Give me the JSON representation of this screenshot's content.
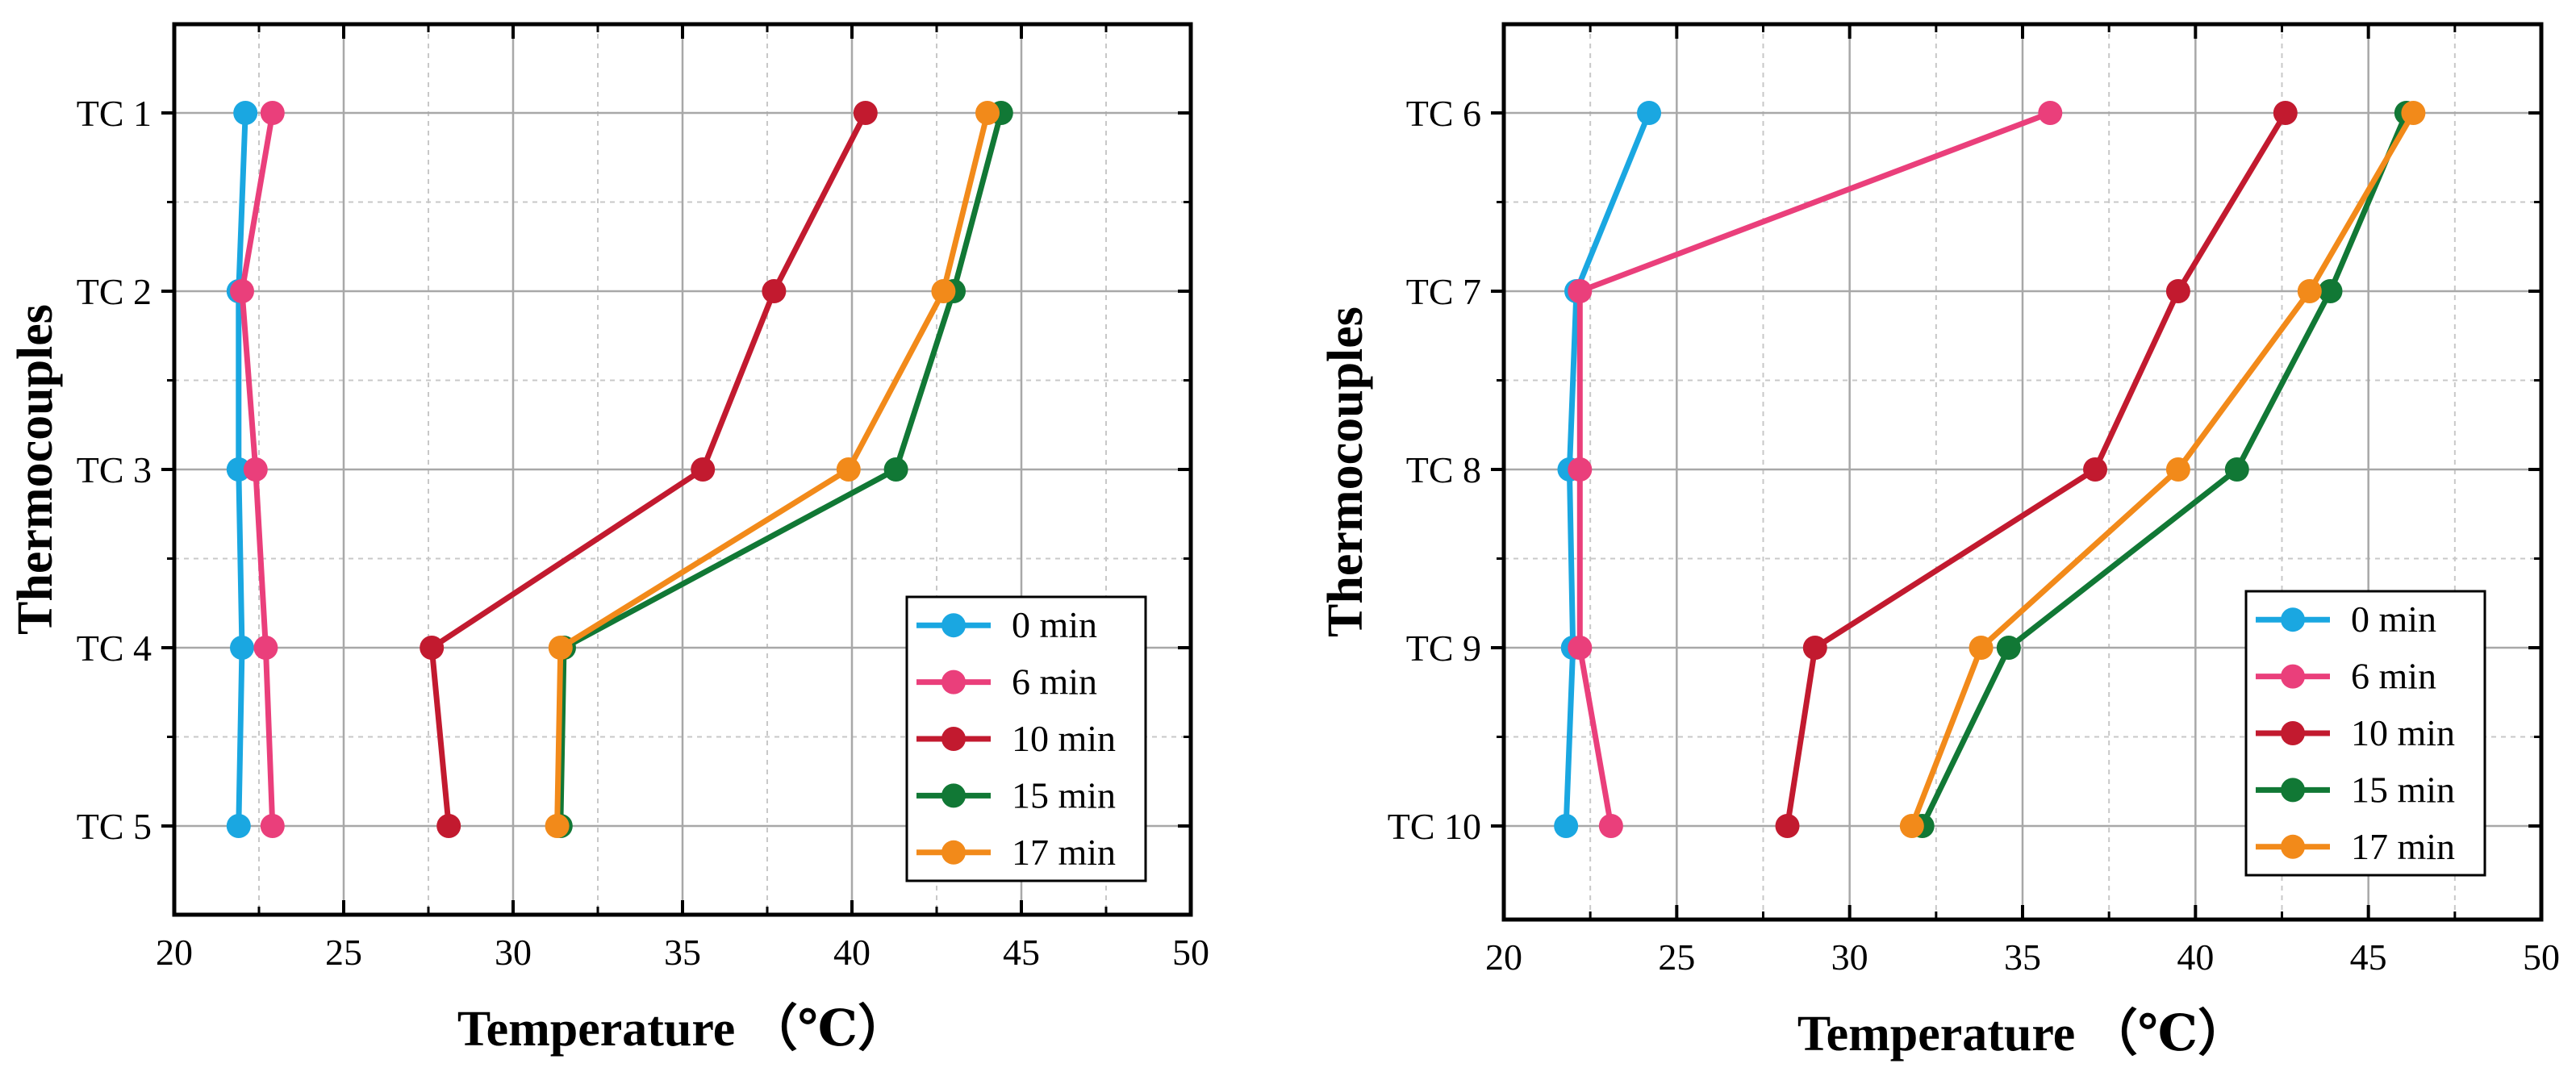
{
  "chart_data": [
    {
      "type": "line",
      "title": "",
      "xlabel": "Temperature （℃）",
      "ylabel": "Thermocouples",
      "xlim": [
        20,
        50
      ],
      "xticks": [
        "20",
        "25",
        "30",
        "35",
        "40",
        "45",
        "50"
      ],
      "categories": [
        "TC 1",
        "TC 2",
        "TC 3",
        "TC 4",
        "TC 5"
      ],
      "grid": true,
      "legend_position": "bottom-right",
      "series": [
        {
          "name": "0 min",
          "color": "#1aa7e1",
          "values": [
            22.1,
            21.9,
            21.9,
            22.0,
            21.9
          ]
        },
        {
          "name": "6 min",
          "color": "#ea3f7b",
          "values": [
            22.9,
            22.0,
            22.4,
            22.7,
            22.9
          ]
        },
        {
          "name": "10 min",
          "color": "#c21a2f",
          "values": [
            40.4,
            37.7,
            35.6,
            27.6,
            28.1
          ]
        },
        {
          "name": "15 min",
          "color": "#117835",
          "values": [
            44.4,
            43.0,
            41.3,
            31.5,
            31.4
          ]
        },
        {
          "name": "17 min",
          "color": "#f28a1a",
          "values": [
            44.0,
            42.7,
            39.9,
            31.4,
            31.3
          ]
        }
      ]
    },
    {
      "type": "line",
      "title": "",
      "xlabel": "Temperature （℃）",
      "ylabel": "Thermocouples",
      "xlim": [
        20,
        50
      ],
      "xticks": [
        "20",
        "25",
        "30",
        "35",
        "40",
        "45",
        "50"
      ],
      "categories": [
        "TC 6",
        "TC 7",
        "TC 8",
        "TC 9",
        "TC 10"
      ],
      "grid": true,
      "legend_position": "bottom-right",
      "series": [
        {
          "name": "0 min",
          "color": "#1aa7e1",
          "values": [
            24.2,
            22.1,
            21.9,
            22.0,
            21.8
          ]
        },
        {
          "name": "6 min",
          "color": "#ea3f7b",
          "values": [
            35.8,
            22.2,
            22.2,
            22.2,
            23.1
          ]
        },
        {
          "name": "10 min",
          "color": "#c21a2f",
          "values": [
            42.6,
            39.5,
            37.1,
            29.0,
            28.2
          ]
        },
        {
          "name": "15 min",
          "color": "#117835",
          "values": [
            46.1,
            43.9,
            41.2,
            34.6,
            32.1
          ]
        },
        {
          "name": "17 min",
          "color": "#f28a1a",
          "values": [
            46.3,
            43.3,
            39.5,
            33.8,
            31.8
          ]
        }
      ]
    }
  ]
}
